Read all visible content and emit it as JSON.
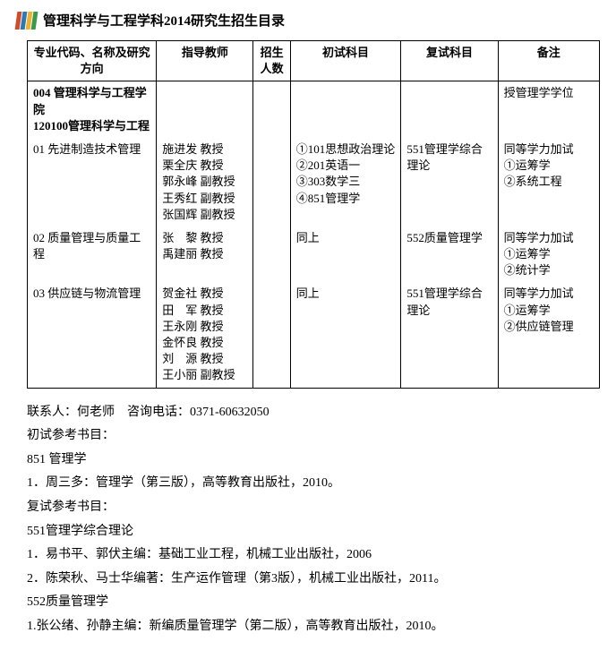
{
  "title": "管理科学与工程学科2014研究生招生目录",
  "table": {
    "headers": {
      "major": "专业代码、名称及研究方向",
      "advisor": "指导教师",
      "quota": "招生人数",
      "exam1": "初试科目",
      "exam2": "复试科目",
      "remark": "备注"
    },
    "deptRow": {
      "major": "004 管理科学与工程学院\n120100管理科学与工程",
      "remark": "授管理学学位"
    },
    "rows": [
      {
        "major": "01 先进制造技术管理",
        "advisors": [
          {
            "name": "施进发",
            "title": "教授"
          },
          {
            "name": "栗全庆",
            "title": "教授"
          },
          {
            "name": "郭永峰",
            "title": "副教授"
          },
          {
            "name": "王秀红",
            "title": "副教授"
          },
          {
            "name": "张国辉",
            "title": "副教授"
          }
        ],
        "exam1": "①101思想政治理论\n②201英语一\n③303数学三\n④851管理学",
        "exam2": "551管理学综合理论",
        "remark": "同等学力加试\n①运筹学\n②系统工程"
      },
      {
        "major": "02 质量管理与质量工程",
        "advisors": [
          {
            "name": "张　黎",
            "title": "教授"
          },
          {
            "name": "禹建丽",
            "title": "教授"
          }
        ],
        "exam1": "同上",
        "exam2": "552质量管理学",
        "remark": "同等学力加试\n①运筹学\n②统计学"
      },
      {
        "major": "03 供应链与物流管理",
        "advisors": [
          {
            "name": "贺金社",
            "title": "教授"
          },
          {
            "name": "田　军",
            "title": "教授"
          },
          {
            "name": "王永刚",
            "title": "教授"
          },
          {
            "name": "金怀良",
            "title": "教授"
          },
          {
            "name": "刘　源",
            "title": "教授"
          },
          {
            "name": "王小丽",
            "title": "副教授"
          }
        ],
        "exam1": "同上",
        "exam2": "551管理学综合理论",
        "remark": "同等学力加试\n①运筹学\n②供应链管理"
      }
    ]
  },
  "info": {
    "contact": "联系人：何老师　咨询电话：0371-60632050",
    "lines": [
      "初试参考书目：",
      "851 管理学",
      "1．周三多：管理学（第三版），高等教育出版社，2010。",
      "复试参考书目：",
      "551管理学综合理论",
      "1．易书平、郭伏主编：基础工业工程，机械工业出版社，2006",
      "2．陈荣秋、马士华编著：生产运作管理（第3版），机械工业出版社，2011。",
      "552质量管理学",
      "1.张公绪、孙静主编：新编质量管理学（第二版），高等教育出版社，2010。"
    ]
  }
}
